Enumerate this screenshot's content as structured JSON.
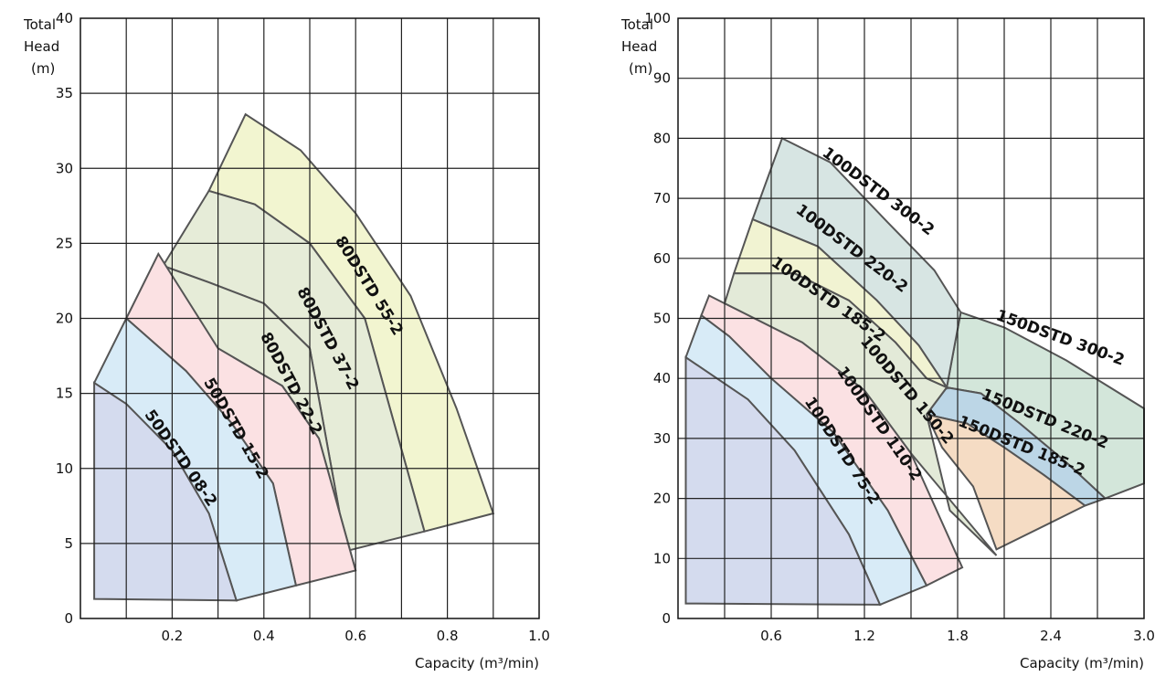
{
  "chart_data": [
    {
      "type": "area",
      "ylabel": [
        "Total",
        "Head",
        "(m)"
      ],
      "xlabel": "Capacity (m³/min)",
      "xlim": [
        0,
        1.0
      ],
      "ylim": [
        0,
        40
      ],
      "x_ticks": [
        {
          "v": 0.2,
          "label": "0.2"
        },
        {
          "v": 0.4,
          "label": "0.4"
        },
        {
          "v": 0.6,
          "label": "0.6"
        },
        {
          "v": 0.8,
          "label": "0.8"
        },
        {
          "v": 1.0,
          "label": "1.0"
        }
      ],
      "y_ticks": [
        0,
        5,
        10,
        15,
        20,
        25,
        30,
        35,
        40
      ],
      "x_grid": [
        0.1,
        0.2,
        0.3,
        0.4,
        0.5,
        0.6,
        0.7,
        0.8,
        0.9
      ],
      "y_grid": [
        5,
        10,
        15,
        20,
        25,
        30,
        35
      ],
      "regions": [
        {
          "name": "80DSTD 55-2",
          "color": "#f2f5d0",
          "polygon": [
            [
              0.28,
              28.5
            ],
            [
              0.36,
              33.6
            ],
            [
              0.48,
              31.2
            ],
            [
              0.6,
              27.0
            ],
            [
              0.72,
              21.5
            ],
            [
              0.82,
              14.0
            ],
            [
              0.9,
              7.0
            ],
            [
              0.75,
              5.8
            ],
            [
              0.62,
              20.0
            ],
            [
              0.5,
              25.0
            ],
            [
              0.38,
              27.6
            ]
          ],
          "label": {
            "at": [
              0.62,
              22.0
            ],
            "angle": 58
          }
        },
        {
          "name": "80DSTD 37-2",
          "color": "#e6ecd8",
          "polygon": [
            [
              0.18,
              23.5
            ],
            [
              0.28,
              28.5
            ],
            [
              0.38,
              27.6
            ],
            [
              0.5,
              25.0
            ],
            [
              0.62,
              20.0
            ],
            [
              0.75,
              5.8
            ],
            [
              0.58,
              4.5
            ],
            [
              0.5,
              18.0
            ],
            [
              0.4,
              21.0
            ],
            [
              0.28,
              22.4
            ]
          ],
          "label": {
            "at": [
              0.53,
              18.5
            ],
            "angle": 62
          }
        },
        {
          "name": "80DSTD 22-2",
          "color": "#e6ecd8",
          "polygon": [
            [
              0.1,
              20.0
            ],
            [
              0.18,
              23.5
            ],
            [
              0.28,
              22.4
            ],
            [
              0.4,
              21.0
            ],
            [
              0.5,
              18.0
            ],
            [
              0.58,
              4.5
            ],
            [
              0.6,
              3.2
            ],
            [
              0.52,
              12.0
            ],
            [
              0.44,
              15.5
            ],
            [
              0.3,
              18.0
            ]
          ],
          "label": {
            "at": [
              0.45,
              15.5
            ],
            "angle": 62
          }
        },
        {
          "name": "50DSTD 15-2",
          "color": "#fbe1e3",
          "polygon": [
            [
              0.1,
              20.0
            ],
            [
              0.17,
              24.3
            ],
            [
              0.3,
              18.0
            ],
            [
              0.44,
              15.5
            ],
            [
              0.52,
              12.0
            ],
            [
              0.6,
              3.2
            ],
            [
              0.47,
              2.2
            ],
            [
              0.42,
              9.0
            ],
            [
              0.33,
              13.0
            ],
            [
              0.23,
              16.5
            ]
          ],
          "label": {
            "at": [
              0.33,
              12.5
            ],
            "angle": 60
          }
        },
        {
          "name": "50DSTD 08-2",
          "color": "#d8ebf7",
          "polygon": [
            [
              0.03,
              15.7
            ],
            [
              0.1,
              20.0
            ],
            [
              0.23,
              16.5
            ],
            [
              0.33,
              13.0
            ],
            [
              0.42,
              9.0
            ],
            [
              0.47,
              2.2
            ],
            [
              0.34,
              1.2
            ],
            [
              0.28,
              7.0
            ],
            [
              0.2,
              11.2
            ],
            [
              0.1,
              14.3
            ]
          ],
          "label": {
            "at": [
              0.21,
              10.5
            ],
            "angle": 55
          }
        },
        {
          "name": "",
          "color": "#d4dbee",
          "polygon": [
            [
              0.03,
              15.7
            ],
            [
              0.1,
              14.3
            ],
            [
              0.2,
              11.2
            ],
            [
              0.28,
              7.0
            ],
            [
              0.34,
              1.2
            ],
            [
              0.03,
              1.3
            ]
          ],
          "label": null
        }
      ],
      "annotations": [
        "80DSTD 55-2",
        "80DSTD 37-2",
        "80DSTD 22-2",
        "50DSTD 15-2",
        "50DSTD 08-2"
      ]
    },
    {
      "type": "area",
      "ylabel": [
        "Total",
        "Head",
        "(m)"
      ],
      "xlabel": "Capacity (m³/min)",
      "xlim": [
        0,
        3.0
      ],
      "ylim": [
        0,
        100
      ],
      "x_ticks": [
        {
          "v": 0.6,
          "label": "0.6"
        },
        {
          "v": 1.2,
          "label": "1.2"
        },
        {
          "v": 1.8,
          "label": "1.8"
        },
        {
          "v": 2.4,
          "label": "2.4"
        },
        {
          "v": 3.0,
          "label": "3.0"
        }
      ],
      "y_ticks": [
        0,
        10,
        20,
        30,
        40,
        50,
        60,
        70,
        80,
        90,
        100
      ],
      "x_grid": [
        0.3,
        0.6,
        0.9,
        1.2,
        1.5,
        1.8,
        2.1,
        2.4,
        2.7
      ],
      "y_grid": [
        10,
        20,
        30,
        40,
        50,
        60,
        70,
        80,
        90
      ],
      "regions": [
        {
          "name": "150DSTD 300-2",
          "color": "#d3e6da",
          "polygon": [
            [
              1.82,
              51.0
            ],
            [
              2.1,
              48.5
            ],
            [
              2.5,
              43.0
            ],
            [
              3.0,
              35.0
            ],
            [
              3.0,
              22.5
            ],
            [
              2.75,
              20.0
            ],
            [
              2.5,
              26.0
            ],
            [
              2.2,
              32.5
            ],
            [
              1.95,
              37.5
            ],
            [
              1.73,
              38.5
            ]
          ],
          "label": {
            "at": [
              2.45,
              46.0
            ],
            "angle": 20
          }
        },
        {
          "name": "150DSTD 220-2",
          "color": "#bcd6e6",
          "polygon": [
            [
              1.73,
              38.5
            ],
            [
              1.95,
              37.5
            ],
            [
              2.2,
              32.5
            ],
            [
              2.5,
              26.0
            ],
            [
              2.75,
              20.0
            ],
            [
              2.62,
              18.8
            ],
            [
              2.35,
              24.0
            ],
            [
              2.1,
              28.5
            ],
            [
              1.86,
              32.5
            ],
            [
              1.6,
              34.0
            ]
          ],
          "label": {
            "at": [
              2.35,
              32.5
            ],
            "angle": 22
          }
        },
        {
          "name": "150DSTD 185-2",
          "color": "#f5dcc4",
          "polygon": [
            [
              1.6,
              34.0
            ],
            [
              1.86,
              32.5
            ],
            [
              2.1,
              28.5
            ],
            [
              2.35,
              24.0
            ],
            [
              2.62,
              18.8
            ],
            [
              2.05,
              11.5
            ],
            [
              1.9,
              22.0
            ],
            [
              1.7,
              28.5
            ]
          ],
          "label": {
            "at": [
              2.2,
              28.0
            ],
            "angle": 22
          }
        },
        {
          "name": "100DSTD 300-2",
          "color": "#d7e5e3",
          "polygon": [
            [
              0.48,
              66.5
            ],
            [
              0.67,
              80.0
            ],
            [
              0.98,
              76.0
            ],
            [
              1.35,
              66.0
            ],
            [
              1.65,
              58.0
            ],
            [
              1.82,
              51.0
            ],
            [
              1.73,
              38.5
            ],
            [
              1.55,
              45.5
            ],
            [
              1.28,
              53.0
            ],
            [
              0.9,
              62.0
            ]
          ],
          "label": {
            "at": [
              1.27,
              70.5
            ],
            "angle": 37
          }
        },
        {
          "name": "100DSTD 220-2",
          "color": "#f1f3d2",
          "polygon": [
            [
              0.36,
              57.5
            ],
            [
              0.48,
              66.5
            ],
            [
              0.9,
              62.0
            ],
            [
              1.28,
              53.0
            ],
            [
              1.55,
              45.5
            ],
            [
              1.73,
              38.5
            ],
            [
              1.6,
              40.0
            ],
            [
              1.4,
              46.0
            ],
            [
              1.1,
              53.0
            ],
            [
              0.75,
              57.5
            ]
          ],
          "label": {
            "at": [
              1.1,
              61.0
            ],
            "angle": 37
          }
        },
        {
          "name": "100DSTD 185-2",
          "color": "#e3ead8",
          "polygon": [
            [
              0.3,
              52.5
            ],
            [
              0.36,
              57.5
            ],
            [
              0.75,
              57.5
            ],
            [
              1.1,
              53.0
            ],
            [
              1.4,
              46.0
            ],
            [
              1.6,
              40.0
            ],
            [
              1.73,
              38.5
            ],
            [
              1.6,
              34.0
            ],
            [
              1.75,
              18.0
            ],
            [
              2.05,
              10.5
            ],
            [
              1.5,
              27.5
            ],
            [
              1.2,
              38.0
            ],
            [
              0.8,
              46.0
            ]
          ],
          "label": {
            "at": [
              0.95,
              52.5
            ],
            "angle": 35
          }
        },
        {
          "name": "100DSTD 150-2",
          "color": "#e3ead8",
          "polygon": [],
          "label": {
            "at": [
              1.45,
              37.5
            ],
            "angle": 50
          }
        },
        {
          "name": "100DSTD 110-2",
          "color": "#fbe1e3",
          "polygon": [
            [
              0.2,
              53.8
            ],
            [
              0.3,
              52.5
            ],
            [
              0.8,
              46.0
            ],
            [
              1.2,
              38.0
            ],
            [
              1.5,
              27.5
            ],
            [
              1.83,
              8.5
            ],
            [
              1.6,
              5.5
            ],
            [
              1.35,
              18.0
            ],
            [
              1.0,
              31.0
            ],
            [
              0.6,
              40.0
            ],
            [
              0.33,
              47.0
            ],
            [
              0.15,
              50.5
            ]
          ],
          "label": {
            "at": [
              1.27,
              32.0
            ],
            "angle": 55
          }
        },
        {
          "name": "100DSTD 75-2",
          "color": "#d8ebf7",
          "polygon": [
            [
              0.15,
              50.5
            ],
            [
              0.33,
              47.0
            ],
            [
              0.6,
              40.0
            ],
            [
              1.0,
              31.0
            ],
            [
              1.35,
              18.0
            ],
            [
              1.6,
              5.5
            ],
            [
              1.3,
              2.3
            ],
            [
              1.1,
              14.0
            ],
            [
              0.75,
              28.0
            ],
            [
              0.45,
              36.5
            ],
            [
              0.05,
              43.5
            ]
          ],
          "label": {
            "at": [
              1.03,
              27.5
            ],
            "angle": 57
          }
        },
        {
          "name": "",
          "color": "#d4dbee",
          "polygon": [
            [
              0.05,
              43.5
            ],
            [
              0.45,
              36.5
            ],
            [
              0.75,
              28.0
            ],
            [
              1.1,
              14.0
            ],
            [
              1.3,
              2.3
            ],
            [
              0.05,
              2.5
            ]
          ],
          "label": null
        }
      ],
      "annotations": [
        "100DSTD 300-2",
        "100DSTD 220-2",
        "100DSTD 185-2",
        "100DSTD 150-2",
        "100DSTD 110-2",
        "100DSTD 75-2",
        "150DSTD 300-2",
        "150DSTD 220-2",
        "150DSTD 185-2"
      ]
    }
  ]
}
